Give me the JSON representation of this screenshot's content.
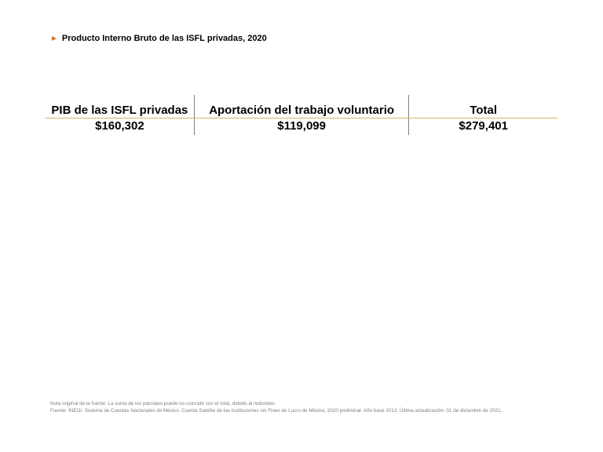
{
  "title": {
    "arrow": "►",
    "text": "Producto Interno Bruto de las ISFL privadas, 2020",
    "arrow_color": "#e36c09"
  },
  "table": {
    "headers": [
      "PIB de las ISFL privadas",
      "Aportación del trabajo voluntario",
      "Total"
    ],
    "values": [
      "$160,302",
      "$119,099",
      "$279,401"
    ]
  },
  "footnotes": {
    "note": "Nota original de la fuente: La suma de los parciales puede no coincidir con el total, debido al redondeo.",
    "source": "Fuente: INEGI. Sistema de Cuentas Nacionales de México. Cuenta Satélite de las Instituciones sin Fines de Lucro de México, 2020  preliminar. Año base 2013.  Última actualización: 01  de diciembre de 2021."
  },
  "colors": {
    "header_rule": "#d6b36a",
    "column_separator": "#7f7f7f",
    "footnote_text": "#7f7f7f"
  }
}
